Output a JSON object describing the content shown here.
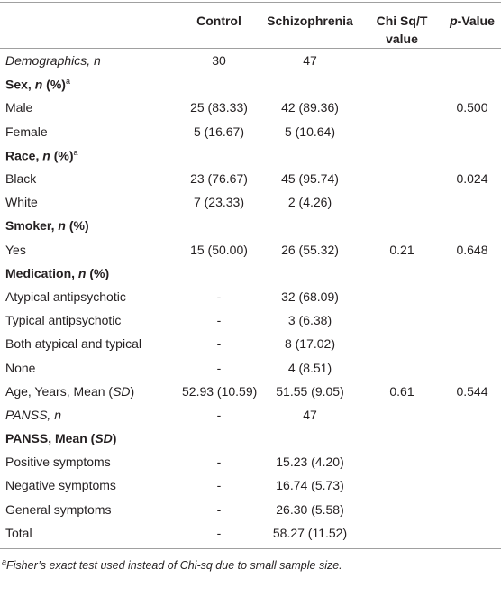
{
  "table": {
    "header": [
      [
        "Control"
      ],
      [
        "Schizophrenia"
      ],
      [
        "Chi Sq/T value"
      ],
      [
        {
          "text": "p",
          "italic": true
        },
        "-Value"
      ]
    ],
    "rows": [
      {
        "kind": "italic",
        "label": [
          "Demographics, n"
        ],
        "cells": [
          "30",
          "47",
          null,
          null
        ]
      },
      {
        "kind": "section",
        "label": [
          "Sex, ",
          {
            "text": "n",
            "italic": true
          },
          " (%)",
          {
            "text": "a",
            "sup": true
          }
        ],
        "cells": [
          null,
          null,
          null,
          null
        ]
      },
      {
        "kind": "data",
        "label": [
          "Male"
        ],
        "cells": [
          "25 (83.33)",
          "42 (89.36)",
          null,
          "0.500"
        ]
      },
      {
        "kind": "data",
        "label": [
          "Female"
        ],
        "cells": [
          "5 (16.67)",
          "5 (10.64)",
          null,
          null
        ]
      },
      {
        "kind": "section",
        "label": [
          "Race, ",
          {
            "text": "n",
            "italic": true
          },
          " (%)",
          {
            "text": "a",
            "sup": true
          }
        ],
        "cells": [
          null,
          null,
          null,
          null
        ]
      },
      {
        "kind": "data",
        "label": [
          "Black"
        ],
        "cells": [
          "23 (76.67)",
          "45 (95.74)",
          null,
          "0.024"
        ]
      },
      {
        "kind": "data",
        "label": [
          "White"
        ],
        "cells": [
          "7 (23.33)",
          "2 (4.26)",
          null,
          null
        ]
      },
      {
        "kind": "section",
        "label": [
          "Smoker, ",
          {
            "text": "n",
            "italic": true
          },
          " (%)"
        ],
        "cells": [
          null,
          null,
          null,
          null
        ]
      },
      {
        "kind": "data",
        "label": [
          "Yes"
        ],
        "cells": [
          "15 (50.00)",
          "26 (55.32)",
          "0.21",
          "0.648"
        ]
      },
      {
        "kind": "section",
        "label": [
          "Medication, ",
          {
            "text": "n",
            "italic": true
          },
          " (%)"
        ],
        "cells": [
          null,
          null,
          null,
          null
        ]
      },
      {
        "kind": "data",
        "label": [
          "Atypical antipsychotic"
        ],
        "cells": [
          "-",
          "32 (68.09)",
          null,
          null
        ]
      },
      {
        "kind": "data",
        "label": [
          "Typical antipsychotic"
        ],
        "cells": [
          "-",
          "3 (6.38)",
          null,
          null
        ]
      },
      {
        "kind": "data",
        "label": [
          "Both atypical and typical"
        ],
        "cells": [
          "-",
          "8 (17.02)",
          null,
          null
        ]
      },
      {
        "kind": "data",
        "label": [
          "None"
        ],
        "cells": [
          "-",
          "4 (8.51)",
          null,
          null
        ]
      },
      {
        "kind": "data",
        "label": [
          "Age, Years, Mean (",
          {
            "text": "SD",
            "italic": true
          },
          ")"
        ],
        "cells": [
          "52.93 (10.59)",
          "51.55 (9.05)",
          "0.61",
          "0.544"
        ]
      },
      {
        "kind": "italic",
        "label": [
          "PANSS, n"
        ],
        "cells": [
          "-",
          "47",
          null,
          null
        ]
      },
      {
        "kind": "section",
        "label": [
          "PANSS, Mean (",
          {
            "text": "SD",
            "italic": true
          },
          ")"
        ],
        "cells": [
          null,
          null,
          null,
          null
        ]
      },
      {
        "kind": "data",
        "label": [
          "Positive symptoms"
        ],
        "cells": [
          "-",
          "15.23 (4.20)",
          null,
          null
        ]
      },
      {
        "kind": "data",
        "label": [
          "Negative symptoms"
        ],
        "cells": [
          "-",
          "16.74 (5.73)",
          null,
          null
        ]
      },
      {
        "kind": "data",
        "label": [
          "General symptoms"
        ],
        "cells": [
          "-",
          "26.30 (5.58)",
          null,
          null
        ]
      },
      {
        "kind": "data",
        "label": [
          "Total"
        ],
        "cells": [
          "-",
          "58.27 (11.52)",
          null,
          null
        ]
      }
    ],
    "footnote": [
      {
        "text": "a",
        "sup": true
      },
      "Fisher’s exact test used instead of Chi-sq due to small sample size."
    ]
  }
}
